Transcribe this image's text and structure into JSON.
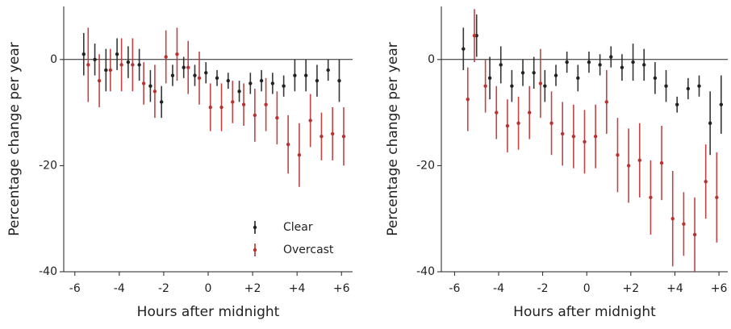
{
  "chart_data": [
    {
      "type": "errorbar",
      "xlabel": "Hours after midnight",
      "ylabel": "Percentage change per year",
      "xlim": [
        -6.5,
        6.5
      ],
      "ylim": [
        -40,
        10
      ],
      "xticks": [
        {
          "value": -6,
          "label": "-6"
        },
        {
          "value": -4,
          "label": "-4"
        },
        {
          "value": -2,
          "label": "-2"
        },
        0,
        {
          "value": 2,
          "label": "+2"
        },
        {
          "value": 4,
          "label": "+4"
        },
        {
          "value": 6,
          "label": "+6"
        }
      ],
      "yticks": [
        -40,
        -20,
        0
      ],
      "series": [
        {
          "name": "Clear",
          "color": "#222222",
          "x": [
            -5.6,
            -5.1,
            -4.6,
            -4.1,
            -3.6,
            -3.1,
            -2.6,
            -2.1,
            -1.6,
            -1.1,
            -0.6,
            -0.1,
            0.4,
            0.9,
            1.4,
            1.9,
            2.4,
            2.9,
            3.4,
            3.9,
            4.4,
            4.9,
            5.4,
            5.9
          ],
          "values": [
            1,
            0,
            -2,
            1,
            -0.5,
            -1,
            -5,
            -8,
            -3,
            -1.5,
            -3,
            -2.5,
            -3.5,
            -4,
            -6,
            -4.5,
            -4,
            -4.5,
            -5,
            -3,
            -3,
            -4,
            -2,
            -4
          ],
          "errors": [
            4,
            3,
            4,
            3,
            3,
            3,
            3,
            3,
            2,
            2,
            2,
            2,
            1.5,
            1.5,
            2,
            2,
            2,
            2,
            2,
            3,
            3,
            3,
            2,
            4
          ]
        },
        {
          "name": "Overcast",
          "color": "#b83232",
          "x": [
            -5.4,
            -4.9,
            -4.4,
            -3.9,
            -3.4,
            -2.9,
            -2.4,
            -1.9,
            -1.4,
            -0.9,
            -0.4,
            0.1,
            0.6,
            1.1,
            1.6,
            2.1,
            2.6,
            3.1,
            3.6,
            4.1,
            4.6,
            5.1,
            5.6,
            6.1
          ],
          "values": [
            -1,
            -4,
            -2,
            -1,
            -1,
            -4.5,
            -6,
            0.5,
            1,
            -1.5,
            -3.5,
            -9,
            -9,
            -8,
            -8.5,
            -10.5,
            -8.5,
            -11,
            -16,
            -18,
            -11.5,
            -14.5,
            -14,
            -14.5
          ],
          "errors": [
            7,
            5,
            4,
            5,
            5,
            4,
            5,
            5,
            5,
            5,
            5,
            4.5,
            4.5,
            4,
            4,
            5,
            5,
            5,
            5.5,
            6,
            5,
            4.5,
            5,
            5.5
          ]
        }
      ]
    },
    {
      "type": "errorbar",
      "xlabel": "Hours after midnight",
      "ylabel": "Percentage change per year",
      "xlim": [
        -6.6,
        6.4
      ],
      "ylim": [
        -40,
        10
      ],
      "xticks": [
        {
          "value": -6,
          "label": "-6"
        },
        {
          "value": -4,
          "label": "-4"
        },
        {
          "value": -2,
          "label": "-2"
        },
        0,
        {
          "value": 2,
          "label": "+2"
        },
        {
          "value": 4,
          "label": "+4"
        },
        {
          "value": 6,
          "label": "+6"
        }
      ],
      "yticks": [
        -40,
        -20,
        0
      ],
      "series": [
        {
          "color": "#222222",
          "x": [
            -5.6,
            -5.0,
            -4.4,
            -3.9,
            -3.4,
            -2.9,
            -2.4,
            -1.9,
            -1.4,
            -0.9,
            -0.4,
            0.1,
            0.6,
            1.1,
            1.6,
            2.1,
            2.6,
            3.1,
            3.6,
            4.1,
            4.6,
            5.1,
            5.6,
            6.1
          ],
          "values": [
            2,
            4.5,
            -3.5,
            -1,
            -5,
            -2.5,
            -2.5,
            -5,
            -3,
            -0.5,
            -3.5,
            -0.5,
            -1,
            0.5,
            -1.5,
            -0.5,
            -1,
            -3.5,
            -5,
            -8.5,
            -5.5,
            -5,
            -12,
            -8.5
          ],
          "errors": [
            4,
            4,
            4,
            3.5,
            3,
            2.5,
            3,
            3,
            2,
            2,
            2.5,
            2,
            2,
            2,
            2.5,
            3.5,
            3,
            3,
            3,
            1.5,
            2,
            2,
            6,
            5.5
          ]
        },
        {
          "color": "#b83232",
          "x": [
            -5.4,
            -5.1,
            -4.6,
            -4.1,
            -3.6,
            -3.1,
            -2.6,
            -2.1,
            -1.6,
            -1.1,
            -0.6,
            -0.1,
            0.4,
            0.9,
            1.4,
            1.9,
            2.4,
            2.9,
            3.4,
            3.9,
            4.4,
            4.9,
            5.4,
            5.9
          ],
          "values": [
            -7.5,
            4.5,
            -5,
            -10,
            -12.5,
            -12,
            -10,
            -4.5,
            -12,
            -14,
            -14.5,
            -15.5,
            -14.5,
            -8,
            -18,
            -20,
            -19,
            -26,
            -19.5,
            -30,
            -31,
            -33,
            -23,
            -26
          ],
          "errors": [
            6,
            5,
            5,
            5,
            5,
            5,
            5,
            6.5,
            6,
            6,
            6,
            6,
            6,
            6,
            7,
            7,
            7,
            7,
            7,
            9,
            6,
            7,
            7,
            8.5
          ]
        }
      ]
    }
  ]
}
